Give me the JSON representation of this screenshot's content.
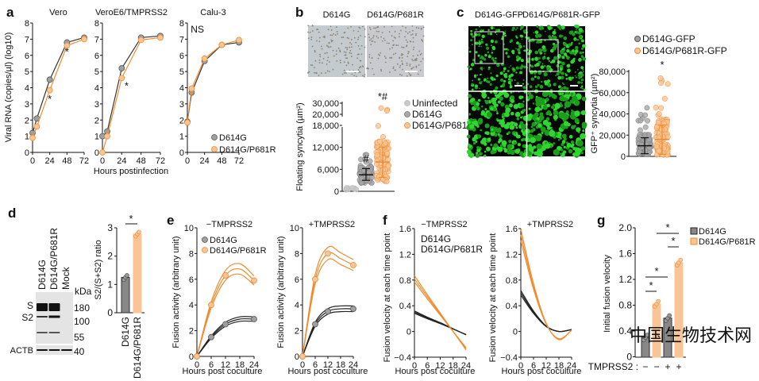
{
  "colors": {
    "d614g": "#7f7f7f",
    "d614g_line": "#222222",
    "p681r": "#f08c2e",
    "p681r_light": "#f9c597",
    "uninfected": "#c8c8c8",
    "ns": "#b0b0b0"
  },
  "panel_labels": [
    "a",
    "b",
    "c",
    "d",
    "e",
    "f",
    "g"
  ],
  "watermark": "中国生物技术网",
  "chart_data": [
    {
      "id": "a-vero",
      "type": "line",
      "title": "Vero",
      "ylabel": "Viral RNA (copies/µl) (log10)",
      "xlabel": "",
      "xlim": [
        0,
        72
      ],
      "ylim": [
        0,
        8
      ],
      "xticks": [
        "0",
        "24",
        "48",
        "72"
      ],
      "yticks": [
        "0",
        "1",
        "2",
        "3",
        "4",
        "5",
        "6",
        "7",
        "8"
      ],
      "x": [
        0,
        6,
        24,
        48,
        72
      ],
      "series": [
        {
          "name": "D614G",
          "values": [
            1.2,
            2.1,
            4.5,
            6.8,
            7.1
          ]
        },
        {
          "name": "D614G/P681R",
          "values": [
            0.9,
            1.6,
            3.85,
            6.6,
            7.0
          ]
        }
      ],
      "annotations": [
        {
          "text": "*",
          "x": 24,
          "y": 3.3
        },
        {
          "text": "*",
          "x": 48,
          "y": 6.2
        }
      ]
    },
    {
      "id": "a-veroe6",
      "type": "line",
      "title": "VeroE6/TMPRSS2",
      "xlabel": "Hours postinfection",
      "xlim": [
        0,
        72
      ],
      "ylim": [
        0,
        8
      ],
      "xticks": [
        "0",
        "24",
        "48",
        "72"
      ],
      "yticks": [
        "0",
        "1",
        "2",
        "3",
        "4",
        "5",
        "6",
        "7",
        "8"
      ],
      "x": [
        0,
        6,
        24,
        48,
        72
      ],
      "series": [
        {
          "name": "D614G",
          "values": [
            1.0,
            1.3,
            5.2,
            7.1,
            7.2
          ]
        },
        {
          "name": "D614G/P681R",
          "values": [
            0.0,
            1.0,
            4.6,
            6.95,
            7.1
          ]
        }
      ],
      "annotations": [
        {
          "text": "*",
          "x": 30,
          "y": 4.1
        }
      ]
    },
    {
      "id": "a-calu3",
      "type": "line",
      "title": "Calu-3",
      "xlabel": "",
      "xlim": [
        0,
        72
      ],
      "ylim": [
        0,
        8
      ],
      "xticks": [
        "0",
        "24",
        "48",
        "72"
      ],
      "yticks": [
        "0",
        "1",
        "2",
        "3",
        "4",
        "5",
        "6",
        "7",
        "8"
      ],
      "x": [
        0,
        6,
        24,
        48,
        72
      ],
      "series": [
        {
          "name": "D614G",
          "values": [
            1.9,
            3.7,
            5.65,
            6.65,
            6.8
          ]
        },
        {
          "name": "D614G/P681R",
          "values": [
            1.85,
            3.95,
            5.8,
            6.65,
            6.95
          ]
        }
      ],
      "annotations": [
        {
          "text": "NS",
          "x": 14,
          "y": 7.6
        }
      ],
      "legend": [
        "D614G",
        "D614G/P681R"
      ],
      "legend_position": "bottom-right"
    },
    {
      "id": "b",
      "type": "scatter",
      "ylabel": "Floating syncytia (µm²)",
      "image_labels": [
        "D614G",
        "D614G/P681R"
      ],
      "categories": [
        "Uninfected",
        "D614G",
        "D614G/P681R"
      ],
      "mean": [
        700,
        4500,
        8000
      ],
      "sd_low": [
        500,
        3000,
        3800
      ],
      "sd_high": [
        900,
        6200,
        12100
      ],
      "yticks": [
        "0",
        "6,000",
        "12,000",
        "18,000",
        "20,000",
        "30,000"
      ],
      "ytick_values": [
        0,
        6000,
        12000,
        18000,
        20000,
        30000
      ],
      "axis_break": [
        18000,
        20000
      ],
      "annotations": [
        "",
        "#",
        "*#"
      ],
      "legend": [
        "Uninfected",
        "D614G",
        "D614G/P681R"
      ],
      "legend_position": "top-right"
    },
    {
      "id": "c",
      "type": "scatter",
      "ylabel": "GFP⁺ syncytia (µm²)",
      "image_labels": [
        "D614G-GFP",
        "D614G/P681R-GFP"
      ],
      "categories": [
        "D614G-GFP",
        "D614G/P681R-GFP"
      ],
      "mean": [
        10000,
        16000
      ],
      "sd_low": [
        2500,
        2000
      ],
      "sd_high": [
        17500,
        29500
      ],
      "ylim": [
        0,
        80000
      ],
      "yticks": [
        "0",
        "20,000",
        "40,000",
        "60,000",
        "80,000"
      ],
      "annotations": [
        "",
        "*"
      ],
      "legend": [
        "D614G-GFP",
        "D614G/P681R-GFP"
      ],
      "legend_position": "top"
    },
    {
      "id": "d",
      "type": "bar",
      "ylabel": "S2/(S+S2) ratio",
      "categories": [
        "D614G",
        "D614G/P681R"
      ],
      "values": [
        1.25,
        2.78
      ],
      "ylim": [
        0,
        3
      ],
      "yticks": [
        "0",
        "1",
        "2",
        "3"
      ],
      "annotations": [
        "*"
      ],
      "blot": {
        "lanes": [
          "D614G",
          "D614G/P681R",
          "Mock"
        ],
        "unit": "kDa",
        "markers": [
          "180",
          "100",
          "55",
          "40"
        ],
        "bands": [
          "S",
          "S2",
          "ACTB"
        ]
      }
    },
    {
      "id": "e-minus",
      "type": "line",
      "title": "−TMPRSS2",
      "ylabel": "Fusion activity (arbitrary unit)",
      "xlabel": "Hours post coculture",
      "xlim": [
        0,
        24
      ],
      "ylim": [
        0,
        10
      ],
      "xticks": [
        "0",
        "6",
        "12",
        "18",
        "24"
      ],
      "yticks": [
        "0",
        "2",
        "4",
        "6",
        "8",
        "10"
      ],
      "x": [
        0,
        6,
        12,
        18,
        24
      ],
      "series": [
        {
          "name": "D614G",
          "values": [
            0,
            1.5,
            2.5,
            2.9,
            2.9
          ]
        },
        {
          "name": "D614G/P681R",
          "values": [
            0,
            4.0,
            6.3,
            6.8,
            5.9
          ]
        }
      ],
      "legend": [
        "D614G",
        "D614G/P681R"
      ],
      "legend_position": "top-left"
    },
    {
      "id": "e-plus",
      "type": "line",
      "title": "+TMPRSS2",
      "ylabel": "Fusion activity (arbitrary unit)",
      "xlabel": "Hours post coculture",
      "xlim": [
        0,
        24
      ],
      "ylim": [
        0,
        10
      ],
      "xticks": [
        "0",
        "6",
        "12",
        "18",
        "24"
      ],
      "yticks": [
        "0",
        "2",
        "4",
        "6",
        "8",
        "10"
      ],
      "x": [
        0,
        6,
        12,
        18,
        24
      ],
      "series": [
        {
          "name": "D614G",
          "values": [
            0,
            2.5,
            3.5,
            3.7,
            3.7
          ]
        },
        {
          "name": "D614G/P681R",
          "values": [
            0,
            6.0,
            8.0,
            7.6,
            7.1
          ]
        }
      ]
    },
    {
      "id": "f-minus",
      "type": "line",
      "title": "−TMPRSS2",
      "ylabel": "Fusion velocity at each time point",
      "xlabel": "Hours post coculture",
      "xlim": [
        0,
        24
      ],
      "ylim": [
        -0.4,
        1.6
      ],
      "xticks": [
        "0",
        "6",
        "12",
        "18",
        "24"
      ],
      "yticks": [
        "−0.4",
        "0",
        "0.4",
        "0.8",
        "1.2",
        "1.6"
      ],
      "x": [
        0,
        6,
        12,
        18,
        24
      ],
      "series": [
        {
          "name": "D614G",
          "values": [
            0.3,
            0.21,
            0.13,
            0.04,
            -0.05
          ]
        },
        {
          "name": "D614G/P681R",
          "values": [
            0.82,
            0.54,
            0.27,
            0.0,
            -0.27
          ]
        }
      ],
      "legend": [
        "D614G",
        "D614G/P681R"
      ],
      "legend_position": "top-left"
    },
    {
      "id": "f-plus",
      "type": "line",
      "title": "+TMPRSS2",
      "ylabel": "Fusion velocity at each time point",
      "xlabel": "Hours post coculture",
      "xlim": [
        0,
        24
      ],
      "ylim": [
        -0.4,
        1.6
      ],
      "xticks": [
        "0",
        "6",
        "12",
        "18",
        "24"
      ],
      "yticks": [
        "−0.4",
        "0",
        "0.4",
        "0.8",
        "1.2",
        "1.6"
      ],
      "x": [
        0,
        6,
        12,
        18,
        24
      ],
      "series": [
        {
          "name": "D614G",
          "values": [
            0.6,
            0.3,
            0.08,
            0.0,
            0.03
          ]
        },
        {
          "name": "D614G/P681R",
          "values": [
            1.5,
            0.7,
            0.12,
            -0.12,
            0.02
          ]
        }
      ]
    },
    {
      "id": "g",
      "type": "bar",
      "ylabel": "Initial fusion velocity",
      "categories": [
        "D614G",
        "D614G/P681R",
        "D614G",
        "D614G/P681R"
      ],
      "values": [
        0.3,
        0.82,
        0.6,
        1.46
      ],
      "tmprss2_label": "TMPRSS2 :",
      "tmprss2": [
        "−",
        "−",
        "+",
        "+"
      ],
      "ylim": [
        0,
        2.0
      ],
      "yticks": [
        "0",
        "0.4",
        "0.8",
        "1.2",
        "1.6",
        "2.0"
      ],
      "significance": [
        "*",
        "*",
        "*",
        "*"
      ],
      "legend": [
        "D614G",
        "D614G/P681R"
      ],
      "legend_position": "top-right"
    }
  ]
}
